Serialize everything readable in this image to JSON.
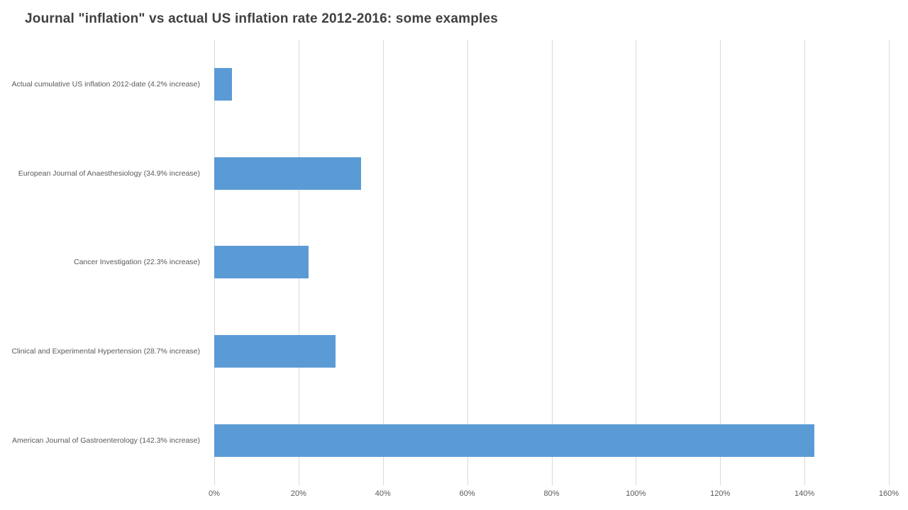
{
  "chart_data": {
    "type": "bar",
    "orientation": "horizontal",
    "title": "Journal \"inflation\" vs actual US inflation rate 2012-2016: some examples",
    "categories": [
      "Actual cumulative US inflation 2012-date (4.2% increase)",
      "European Journal of Anaesthesiology (34.9% increase)",
      "Cancer Investigation (22.3% increase)",
      "Clinical and Experimental Hypertension (28.7% increase)",
      "American Journal of Gastroenterology (142.3% increase)"
    ],
    "values": [
      4.2,
      34.9,
      22.3,
      28.7,
      142.3
    ],
    "xlabel": "",
    "ylabel": "",
    "xlim": [
      0,
      160
    ],
    "x_tick_step": 20,
    "x_tick_labels": [
      "0%",
      "20%",
      "40%",
      "60%",
      "80%",
      "100%",
      "120%",
      "140%",
      "160%"
    ],
    "grid": "vertical-only",
    "legend": "none",
    "colors": {
      "bar": "#5B9BD5",
      "gridline": "#D9D9D9",
      "axis_text": "#595959",
      "title_text": "#404040",
      "background": "#FFFFFF"
    }
  }
}
